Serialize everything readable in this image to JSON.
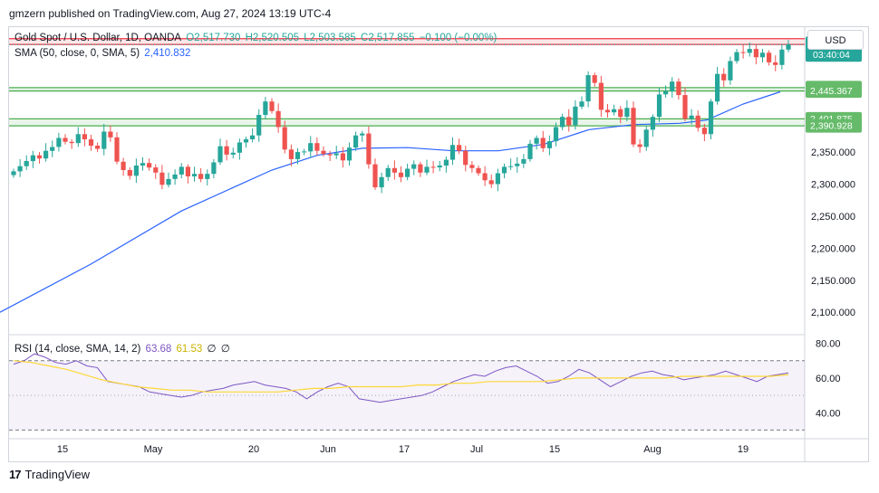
{
  "header": {
    "text": "gmzern published on TradingView.com, Aug 27, 2024 13:19 UTC-4"
  },
  "legend": {
    "symbol": "Gold Spot / U.S. Dollar, 1D, OANDA",
    "o": "O2,517.730",
    "h": "H2,520.505",
    "l": "L2,503.585",
    "c": "C2,517.855",
    "chg": "−0.100 (−0.00%)",
    "sma_label": "SMA (50, close, 0, SMA, 5)",
    "sma_value": "2,410.832",
    "rsi_label": "RSI (14, close, SMA, 14, 2)",
    "rsi_value": "63.68",
    "rsi_sma_value": "61.53",
    "rsi_extra1": "∅",
    "rsi_extra2": "∅"
  },
  "currency_button": "USD",
  "footer": {
    "logo": "17",
    "brand": "TradingView"
  },
  "colors": {
    "up": "#26a69a",
    "down": "#ef5350",
    "sma": "#2962ff",
    "rsi": "#7e57c2",
    "rsi_sma": "#fdd835",
    "zone_green": "#4caf50",
    "zone_red": "#f23645"
  },
  "chart_data": [
    {
      "type": "candlestick",
      "title": "Gold Spot / U.S. Dollar, 1D, OANDA",
      "x_ticks": [
        "15",
        "May",
        "20",
        "Jun",
        "17",
        "Jul",
        "15",
        "Aug",
        "19"
      ],
      "y_ticks": [
        "2,350.000",
        "2,300.000",
        "2,250.000",
        "2,200.000",
        "2,150.000",
        "2,100.000"
      ],
      "ylim": [
        2065,
        2545
      ],
      "price_labels": [
        {
          "label": "2,517.855",
          "sub": "03:40:04",
          "value": 2517.855,
          "style": "current"
        },
        {
          "label": "2,450.595",
          "value": 2450.595,
          "style": "zone"
        },
        {
          "label": "2,445.367",
          "value": 2445.367,
          "style": "zone"
        },
        {
          "label": "2,401.875",
          "value": 2401.875,
          "style": "zone"
        },
        {
          "label": "2,390.928",
          "value": 2390.928,
          "style": "zone"
        }
      ],
      "zones": [
        {
          "from": 2518,
          "to": 2527,
          "color": "red"
        },
        {
          "from": 2445.367,
          "to": 2450.595,
          "color": "green"
        },
        {
          "from": 2390.928,
          "to": 2401.875,
          "color": "green"
        }
      ],
      "closes": [
        2320,
        2328,
        2336,
        2345,
        2340,
        2352,
        2358,
        2372,
        2366,
        2364,
        2378,
        2370,
        2360,
        2355,
        2382,
        2373,
        2335,
        2322,
        2313,
        2329,
        2333,
        2326,
        2318,
        2299,
        2308,
        2315,
        2327,
        2312,
        2316,
        2308,
        2316,
        2334,
        2359,
        2346,
        2349,
        2365,
        2370,
        2376,
        2408,
        2429,
        2414,
        2389,
        2354,
        2339,
        2350,
        2351,
        2364,
        2352,
        2347,
        2345,
        2348,
        2337,
        2357,
        2376,
        2379,
        2331,
        2295,
        2311,
        2325,
        2318,
        2311,
        2324,
        2331,
        2318,
        2327,
        2326,
        2329,
        2338,
        2361,
        2352,
        2330,
        2325,
        2317,
        2306,
        2300,
        2317,
        2327,
        2328,
        2332,
        2339,
        2363,
        2372,
        2356,
        2367,
        2389,
        2405,
        2392,
        2421,
        2429,
        2470,
        2458,
        2416,
        2412,
        2417,
        2405,
        2419,
        2362,
        2358,
        2385,
        2405,
        2440,
        2445,
        2460,
        2439,
        2402,
        2407,
        2388,
        2378,
        2429,
        2472,
        2462,
        2492,
        2506,
        2505,
        2511,
        2498,
        2505,
        2490,
        2486,
        2510,
        2518
      ],
      "sma_points": [
        [
          0,
          2100
        ],
        [
          100,
          2175
        ],
        [
          200,
          2258
        ],
        [
          300,
          2322
        ],
        [
          350,
          2345
        ],
        [
          400,
          2356
        ],
        [
          450,
          2357
        ],
        [
          500,
          2352
        ],
        [
          550,
          2352
        ],
        [
          600,
          2362
        ],
        [
          650,
          2385
        ],
        [
          700,
          2393
        ],
        [
          750,
          2395
        ],
        [
          780,
          2400
        ],
        [
          820,
          2425
        ],
        [
          861,
          2444
        ]
      ],
      "rsi": {
        "ylim": [
          25,
          85
        ],
        "y_ticks": [
          "80.00",
          "60.00",
          "40.00"
        ],
        "levels": [
          70,
          30
        ],
        "values": [
          68,
          70,
          74,
          72,
          69,
          68,
          70,
          67,
          66,
          58,
          57,
          56,
          55,
          52,
          51,
          50,
          49,
          50,
          52,
          53,
          54,
          56,
          57,
          58,
          56,
          55,
          54,
          52,
          48,
          52,
          55,
          57,
          55,
          48,
          47,
          46,
          47,
          48,
          49,
          50,
          52,
          55,
          58,
          60,
          62,
          61,
          64,
          66,
          67,
          64,
          61,
          57,
          58,
          61,
          65,
          63,
          59,
          55,
          58,
          61,
          63,
          64,
          62,
          61,
          59,
          60,
          61,
          62,
          64,
          62,
          60,
          58,
          61,
          62,
          63
        ],
        "sma_values": [
          70,
          69,
          67,
          65,
          62,
          59,
          57,
          55,
          54,
          53,
          53,
          52,
          52,
          52,
          52,
          52,
          53,
          54,
          54,
          55,
          55,
          55,
          55,
          56,
          56,
          57,
          57,
          58,
          58,
          58,
          58,
          59,
          60,
          60,
          60,
          60,
          60,
          60,
          61,
          61,
          61,
          61,
          61,
          61,
          62
        ]
      }
    }
  ]
}
